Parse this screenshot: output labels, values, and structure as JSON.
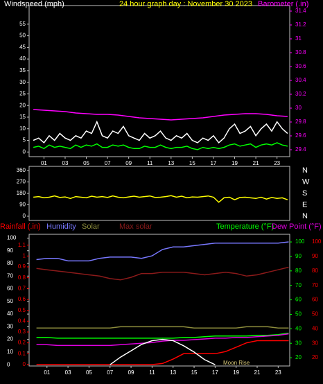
{
  "chart_data": [
    {
      "type": "line",
      "ylabel": "Windspeed (mph)",
      "title": "24 hour graph day : November 30 2023",
      "y2label": "Barometer (.in)",
      "ylabel_color": "#ffffff",
      "title_color": "#ffff00",
      "y2label_color": "#ff00ff",
      "xlim": [
        -0.4,
        24.2
      ],
      "xticks": [
        {
          "value": 1,
          "label": "01"
        },
        {
          "value": 3,
          "label": "03"
        },
        {
          "value": 5,
          "label": "05"
        },
        {
          "value": 7,
          "label": "07"
        },
        {
          "value": 9,
          "label": "09"
        },
        {
          "value": 11,
          "label": "11"
        },
        {
          "value": 13,
          "label": "13"
        },
        {
          "value": 15,
          "label": "15"
        },
        {
          "value": 17,
          "label": "17"
        },
        {
          "value": 19,
          "label": "19"
        },
        {
          "value": 21,
          "label": "21"
        },
        {
          "value": 23,
          "label": "23"
        }
      ],
      "ylim": [
        -2,
        63
      ],
      "yticks": [
        0,
        5,
        10,
        15,
        20,
        25,
        30,
        35,
        40,
        45,
        50,
        55
      ],
      "ytick_color": "#ffffff",
      "y2lim": [
        29.3,
        31.48
      ],
      "y2ticks": [
        29.4,
        29.6,
        29.8,
        30,
        30.2,
        30.4,
        30.6,
        30.8,
        31,
        31.2,
        31.4
      ],
      "y2tick_colors": [
        "#ff00ff"
      ],
      "x": [
        0,
        0.5,
        1,
        1.5,
        2,
        2.5,
        3,
        3.5,
        4,
        4.5,
        5,
        5.5,
        6,
        6.5,
        7,
        7.5,
        8,
        8.5,
        9,
        9.5,
        10,
        10.5,
        11,
        11.5,
        12,
        12.5,
        13,
        13.5,
        14,
        14.5,
        15,
        15.5,
        16,
        16.5,
        17,
        17.5,
        18,
        18.5,
        19,
        19.5,
        20,
        20.5,
        21,
        21.5,
        22,
        22.5,
        23,
        23.5,
        24
      ],
      "series": [
        {
          "color": "#ffffff",
          "values": [
            5,
            6,
            4,
            7,
            5,
            8,
            6,
            5,
            7,
            6,
            9,
            8,
            13,
            7,
            6,
            9,
            8,
            11,
            7,
            6,
            5,
            8,
            6,
            7,
            9,
            6,
            5,
            7,
            6,
            8,
            5,
            4,
            6,
            5,
            7,
            4,
            6,
            10,
            12,
            8,
            9,
            11,
            7,
            10,
            12,
            9,
            13,
            10,
            8
          ]
        },
        {
          "color": "#00ff00",
          "values": [
            2,
            2.5,
            1.5,
            3,
            2,
            2.5,
            2,
            1.5,
            3,
            2,
            3,
            2.5,
            3.5,
            2,
            2,
            3,
            2.5,
            3,
            2,
            1.5,
            1.5,
            2.5,
            2,
            2,
            3,
            2,
            1.5,
            2,
            2,
            2.5,
            1.5,
            1,
            2,
            1.5,
            2,
            1.5,
            2,
            3,
            3.5,
            2.5,
            3,
            3.5,
            2,
            3,
            3.5,
            3,
            4,
            3,
            2.5
          ]
        },
        {
          "color": "#ff00ff",
          "axis": "y2",
          "values": [
            29.98,
            29.975,
            29.97,
            29.965,
            29.96,
            29.955,
            29.95,
            29.94,
            29.93,
            29.925,
            29.92,
            29.915,
            29.91,
            29.91,
            29.91,
            29.905,
            29.9,
            29.89,
            29.88,
            29.87,
            29.86,
            29.855,
            29.85,
            29.845,
            29.84,
            29.835,
            29.83,
            29.835,
            29.84,
            29.845,
            29.85,
            29.855,
            29.86,
            29.87,
            29.88,
            29.89,
            29.9,
            29.905,
            29.91,
            29.915,
            29.92,
            29.92,
            29.92,
            29.915,
            29.91,
            29.9,
            29.89,
            29.885,
            29.88
          ]
        }
      ]
    },
    {
      "type": "line",
      "xlim": [
        -0.4,
        24.2
      ],
      "ylim": [
        -33,
        393
      ],
      "yticks": [
        360,
        270,
        180,
        90,
        0
      ],
      "ytick_color": "#ffffff",
      "compass": [
        "N",
        "W",
        "S",
        "E",
        "N"
      ],
      "x": [
        0,
        0.5,
        1,
        1.5,
        2,
        2.5,
        3,
        3.5,
        4,
        4.5,
        5,
        5.5,
        6,
        6.5,
        7,
        7.5,
        8,
        8.5,
        9,
        9.5,
        10,
        10.5,
        11,
        11.5,
        12,
        12.5,
        13,
        13.5,
        14,
        14.5,
        15,
        15.5,
        16,
        16.5,
        17,
        17.5,
        18,
        18.5,
        19,
        19.5,
        20,
        20.5,
        21,
        21.5,
        22,
        22.5,
        23,
        23.5,
        24
      ],
      "series": [
        {
          "color": "#ffff00",
          "values": [
            150,
            155,
            145,
            150,
            160,
            148,
            152,
            140,
            155,
            150,
            145,
            158,
            150,
            155,
            148,
            160,
            150,
            145,
            152,
            158,
            150,
            155,
            160,
            148,
            150,
            155,
            162,
            150,
            158,
            145,
            152,
            150,
            155,
            160,
            150,
            110,
            145,
            150,
            130,
            148,
            150,
            145,
            140,
            150,
            135,
            148,
            140,
            145,
            130
          ]
        }
      ]
    },
    {
      "type": "line",
      "xlim": [
        -0.7,
        24.1
      ],
      "xticks": [
        {
          "value": 1,
          "label": "01"
        },
        {
          "value": 3,
          "label": "03"
        },
        {
          "value": 5,
          "label": "05"
        },
        {
          "value": 7,
          "label": "07"
        },
        {
          "value": 9,
          "label": "09"
        },
        {
          "value": 11,
          "label": "11"
        },
        {
          "value": 13,
          "label": "13"
        },
        {
          "value": 15,
          "label": "15"
        },
        {
          "value": 17,
          "label": "17"
        },
        {
          "value": 19,
          "label": "19"
        },
        {
          "value": 21,
          "label": "21"
        },
        {
          "value": 23,
          "label": "23"
        }
      ],
      "ylim": [
        -1,
        103
      ],
      "yticks": [
        0,
        10,
        20,
        30,
        40,
        50,
        60,
        70,
        80,
        90,
        100
      ],
      "ytick_color": "#ffffff",
      "y3lim": [
        -0.013,
        1.2
      ],
      "y3ticks": [
        0,
        0.1,
        0.2,
        0.3,
        0.4,
        0.5,
        0.6,
        0.7,
        0.8,
        0.9,
        1,
        1.1
      ],
      "y3tick_color": "#ff0000",
      "y2lim": [
        14.3,
        105.3
      ],
      "y2ticks": [
        20,
        30,
        40,
        50,
        60,
        70,
        80,
        90,
        100
      ],
      "y2tick_colors": [
        "#00ff00",
        "#ff0000"
      ],
      "annotation": "Moon Rise",
      "x": [
        0,
        1,
        2,
        3,
        4,
        5,
        6,
        7,
        8,
        9,
        10,
        11,
        12,
        13,
        14,
        15,
        16,
        17,
        18,
        19,
        20,
        21,
        22,
        23,
        24
      ],
      "series": [
        {
          "name": "Rainfall (.in)",
          "color": "#ff0000",
          "axis": "y3",
          "values": [
            0,
            0,
            0,
            0,
            0,
            0,
            0,
            0,
            0,
            0,
            0,
            0,
            0.01,
            0.05,
            0.1,
            0.1,
            0.1,
            0.1,
            0.12,
            0.16,
            0.2,
            0.22,
            0.22,
            0.22,
            0.22
          ]
        },
        {
          "name": "Humidity",
          "color": "#7878ff",
          "values": [
            83,
            84,
            84,
            82,
            82,
            82,
            84,
            85,
            85,
            85,
            84,
            86,
            91,
            93,
            93,
            94,
            95,
            96,
            96,
            96,
            96,
            96,
            96,
            96,
            97
          ]
        },
        {
          "name": "Solar",
          "color": "#8c8c3c",
          "values": [
            29,
            29,
            29,
            29,
            29,
            29,
            29,
            29,
            30,
            30,
            30,
            30,
            30,
            30,
            30,
            29,
            29,
            29,
            29,
            29,
            30,
            30,
            30,
            29,
            29
          ]
        },
        {
          "name": "Max solar",
          "color": "#8b1a1a",
          "values": [
            76,
            75,
            74,
            73,
            72,
            71,
            70,
            68,
            67,
            69,
            72,
            72,
            73,
            73,
            73,
            72,
            71,
            72,
            73,
            72,
            70,
            71,
            73,
            75,
            77
          ]
        },
        {
          "name": "Temperature (°F)",
          "color": "#00ff00",
          "axis": "y2",
          "values": [
            34,
            34,
            33.5,
            33.5,
            33.5,
            33.5,
            33.5,
            33.5,
            33.5,
            33.5,
            33.5,
            33.5,
            33.5,
            33.5,
            34,
            34,
            34.5,
            35,
            35,
            35,
            35,
            35.5,
            35.5,
            36,
            37
          ]
        },
        {
          "name": "Dew Point (°F)",
          "color": "#e000e0",
          "axis": "y2",
          "values": [
            29,
            29,
            28.5,
            28.5,
            28.5,
            28.5,
            28.5,
            28.5,
            29,
            29.5,
            30,
            30.5,
            31.5,
            32,
            32,
            32.5,
            33,
            33.5,
            33.5,
            34,
            34,
            34.5,
            35,
            35.5,
            36.5
          ]
        },
        {
          "color": "#ffffff",
          "values": [
            null,
            null,
            null,
            null,
            null,
            null,
            null,
            0,
            6,
            11,
            16,
            19,
            20,
            19,
            15,
            10,
            4,
            0,
            null,
            null,
            null,
            null,
            null,
            null,
            null
          ]
        }
      ]
    }
  ]
}
